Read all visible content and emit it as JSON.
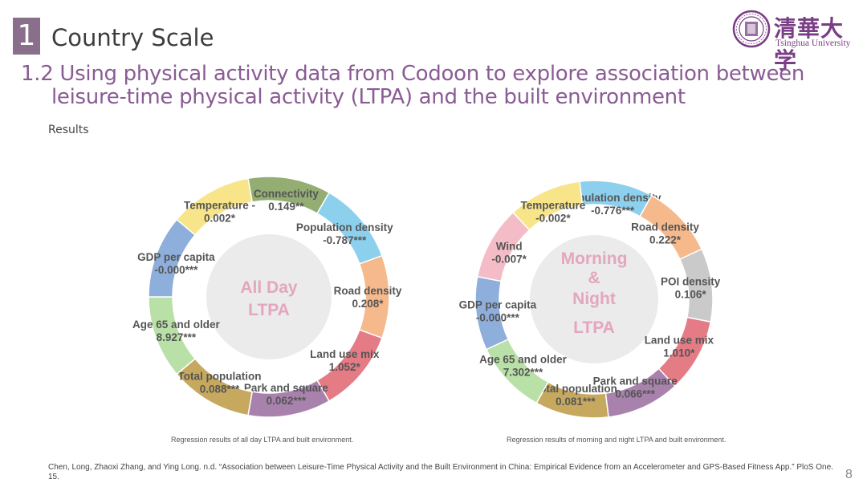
{
  "slide": {
    "section_number": "1",
    "section_title": "Country Scale",
    "subtitle_line1": "1.2 Using physical activity data from Codoon to explore association between",
    "subtitle_line2": "leisure-time physical activity (LTPA) and the built environment",
    "results_label": "Results",
    "page_number": "8",
    "citation": "Chen, Long, Zhaoxi Zhang, and Ying Long. n.d. “Association between Leisure-Time Physical Activity and the Built Environment in China: Empirical Evidence from an Accelerometer and GPS-Based Fitness App.” PloS One. 15."
  },
  "logo": {
    "chinese": "清華大学",
    "english": "Tsinghua University"
  },
  "diagrams": [
    {
      "center_lines": [
        "All Day",
        "LTPA"
      ],
      "caption": "Regression results of all day LTPA and built environment.",
      "segments": [
        {
          "label": "Connectivity",
          "value": "0.149**",
          "color": "#93ad72"
        },
        {
          "label": "Population density",
          "value": "-0.787***",
          "color": "#8dd0ee"
        },
        {
          "label": "Road density",
          "value": "0.208*",
          "color": "#f6b98c"
        },
        {
          "label": "Land use mix",
          "value": "1.052*",
          "color": "#e47b85"
        },
        {
          "label": "Park and square",
          "value": "0.062***",
          "color": "#a882ad"
        },
        {
          "label": "Total population",
          "value": "0.088***",
          "color": "#c6a95e"
        },
        {
          "label": "Age 65 and older",
          "value": "8.927***",
          "color": "#b9e0a6"
        },
        {
          "label": "GDP per capita",
          "value": "-0.000***",
          "color": "#8eaedb"
        },
        {
          "label": "Temperature -",
          "value": "0.002*",
          "color": "#f8e58a"
        }
      ]
    },
    {
      "center_lines": [
        "Morning",
        "&",
        "Night",
        "LTPA"
      ],
      "caption": "Regression results of morning and night LTPA and built environment.",
      "segments": [
        {
          "label": "Population density",
          "value": "-0.776***",
          "color": "#8dd0ee"
        },
        {
          "label": "Road density",
          "value": "0.222*",
          "color": "#f6b98c"
        },
        {
          "label": "POI density",
          "value": "0.106*",
          "color": "#cacaca"
        },
        {
          "label": "Land use mix",
          "value": "1.010*",
          "color": "#e47b85"
        },
        {
          "label": "Park and square",
          "value": "0.066***",
          "color": "#a882ad"
        },
        {
          "label": "Total population",
          "value": "0.081***",
          "color": "#c6a95e"
        },
        {
          "label": "Age 65 and older",
          "value": "7.302***",
          "color": "#b9e0a6"
        },
        {
          "label": "GDP per capita",
          "value": "-0.000***",
          "color": "#8eaedb"
        },
        {
          "label": "Wind",
          "value": "-0.007*",
          "color": "#f3bcc6"
        },
        {
          "label": "Temperature",
          "value": "-0.002*",
          "color": "#f8e58a"
        }
      ]
    }
  ]
}
